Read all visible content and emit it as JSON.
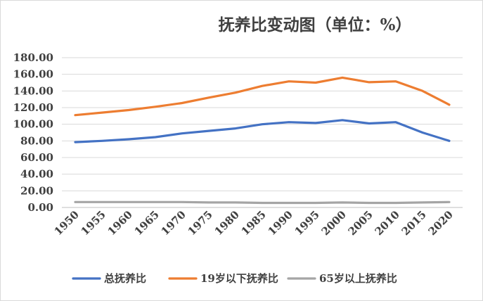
{
  "chart_data": {
    "type": "line",
    "title": "抚养比变动图（单位：%）",
    "xlabel": "",
    "ylabel": "",
    "categories": [
      "1950",
      "1955",
      "1960",
      "1965",
      "1970",
      "1975",
      "1980",
      "1985",
      "1990",
      "1995",
      "2000",
      "2005",
      "2010",
      "2015",
      "2020"
    ],
    "ylim": [
      0,
      180
    ],
    "yticks": [
      "0.00",
      "20.00",
      "40.00",
      "60.00",
      "80.00",
      "100.00",
      "120.00",
      "140.00",
      "160.00",
      "180.00"
    ],
    "grid": true,
    "legend_position": "bottom",
    "series": [
      {
        "name": "总抚养比",
        "color": "#4472c4",
        "values": [
          78.5,
          80,
          82,
          84.5,
          89,
          92,
          95,
          100,
          102.5,
          101.5,
          105,
          101,
          102.5,
          90,
          80
        ]
      },
      {
        "name": "19岁以下抚养比",
        "color": "#ed7d31",
        "values": [
          111,
          114,
          117,
          121,
          125.5,
          132,
          138,
          146,
          151.5,
          150,
          156,
          150.5,
          151.5,
          140,
          123.5
        ]
      },
      {
        "name": "65岁以上抚养比",
        "color": "#a5a5a5",
        "values": [
          6.5,
          6.5,
          6.5,
          6.5,
          6.5,
          6,
          6,
          5.5,
          5.5,
          5.5,
          6,
          5.5,
          5.5,
          6,
          6.5
        ]
      }
    ]
  }
}
